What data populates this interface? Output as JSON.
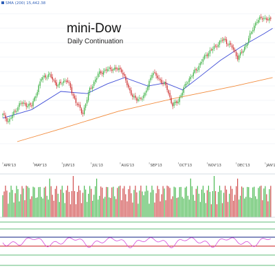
{
  "chart_data": {
    "type": "candlestick",
    "title": "mini-Dow",
    "subtitle": "Daily Continuation",
    "legend": {
      "sma_label": "SMA (200) 15,442.38"
    },
    "months": [
      "APR'13",
      "MAY'13",
      "JUN'13",
      "JUL'13",
      "AUG'13",
      "SEP'13",
      "OCT'13",
      "NOV'13",
      "DEC'13",
      "JAN'14"
    ],
    "price_path": [
      {
        "m": 0.0,
        "v": 14680
      },
      {
        "m": 0.2,
        "v": 14560
      },
      {
        "m": 0.6,
        "v": 14900
      },
      {
        "m": 1.0,
        "v": 14850
      },
      {
        "m": 1.35,
        "v": 15380
      },
      {
        "m": 1.6,
        "v": 15430
      },
      {
        "m": 1.9,
        "v": 15230
      },
      {
        "m": 2.2,
        "v": 15350
      },
      {
        "m": 2.5,
        "v": 14950
      },
      {
        "m": 2.75,
        "v": 14700
      },
      {
        "m": 3.0,
        "v": 15150
      },
      {
        "m": 3.3,
        "v": 15450
      },
      {
        "m": 3.55,
        "v": 15520
      },
      {
        "m": 3.8,
        "v": 15550
      },
      {
        "m": 4.1,
        "v": 15520
      },
      {
        "m": 4.35,
        "v": 15150
      },
      {
        "m": 4.6,
        "v": 14950
      },
      {
        "m": 4.9,
        "v": 15050
      },
      {
        "m": 5.15,
        "v": 15480
      },
      {
        "m": 5.4,
        "v": 15350
      },
      {
        "m": 5.65,
        "v": 15200
      },
      {
        "m": 5.85,
        "v": 14850
      },
      {
        "m": 6.05,
        "v": 14950
      },
      {
        "m": 6.35,
        "v": 15300
      },
      {
        "m": 6.7,
        "v": 15550
      },
      {
        "m": 7.0,
        "v": 15800
      },
      {
        "m": 7.3,
        "v": 15950
      },
      {
        "m": 7.6,
        "v": 16100
      },
      {
        "m": 7.9,
        "v": 15950
      },
      {
        "m": 8.1,
        "v": 15750
      },
      {
        "m": 8.3,
        "v": 15900
      },
      {
        "m": 8.55,
        "v": 16200
      },
      {
        "m": 8.75,
        "v": 16450
      },
      {
        "m": 9.0,
        "v": 16500
      },
      {
        "m": 9.25,
        "v": 16450
      }
    ],
    "sma_path": [
      {
        "m": 0.0,
        "v": 14620
      },
      {
        "m": 1.0,
        "v": 14780
      },
      {
        "m": 2.0,
        "v": 15120
      },
      {
        "m": 2.9,
        "v": 15080
      },
      {
        "m": 3.6,
        "v": 15260
      },
      {
        "m": 4.2,
        "v": 15380
      },
      {
        "m": 5.0,
        "v": 15220
      },
      {
        "m": 5.6,
        "v": 15280
      },
      {
        "m": 6.2,
        "v": 15150
      },
      {
        "m": 6.8,
        "v": 15400
      },
      {
        "m": 7.5,
        "v": 15700
      },
      {
        "m": 8.2,
        "v": 15950
      },
      {
        "m": 9.0,
        "v": 16200
      },
      {
        "m": 9.3,
        "v": 16300
      }
    ],
    "sma200_path": [
      {
        "m": 0.5,
        "v": 14180
      },
      {
        "m": 2.0,
        "v": 14420
      },
      {
        "m": 4.0,
        "v": 14750
      },
      {
        "m": 6.0,
        "v": 15000
      },
      {
        "m": 8.0,
        "v": 15220
      },
      {
        "m": 9.3,
        "v": 15380
      }
    ],
    "y_range": [
      14000,
      16600
    ],
    "candles_per_month": 21,
    "oscillator": {
      "upper_level": 70,
      "lower_level": 30,
      "range": [
        0,
        100
      ]
    }
  }
}
